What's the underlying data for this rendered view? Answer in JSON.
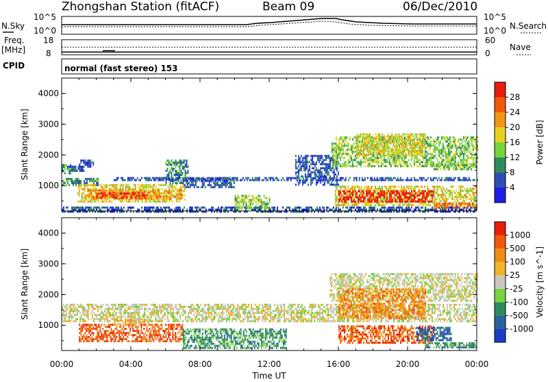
{
  "header": {
    "station_title": "Zhongshan Station (fitACF)",
    "beam_label": "Beam 09",
    "date_label": "06/Dec/2010"
  },
  "noise_panel": {
    "left_label": "N.Sky",
    "right_label": "N.Search",
    "left_top": "10^5",
    "left_bottom": "10^0",
    "right_top": "10^5",
    "right_bottom": "10^0"
  },
  "freq_panel": {
    "left_label_line1": "Freq.",
    "left_label_line2": "[MHz]",
    "right_label": "Nave",
    "left_top": "18",
    "left_bottom": "8",
    "right_top": "60",
    "right_bottom": "0"
  },
  "cpid_panel": {
    "label": "CPID",
    "mode_text": "normal (fast stereo) 153"
  },
  "x_axis": {
    "title": "Time UT",
    "tick_labels": [
      "00:00",
      "04:00",
      "08:00",
      "12:00",
      "16:00",
      "20:00",
      "00:00"
    ]
  },
  "chart_data": [
    {
      "type": "heatmap",
      "title": "Power",
      "ylabel": "Slant Range [km]",
      "xlabel": "",
      "x_unit": "hours UT",
      "xlim": [
        0,
        24
      ],
      "ylim": [
        180,
        4500
      ],
      "y_ticks": [
        1000,
        2000,
        3000,
        4000
      ],
      "y_tick_labels": [
        "1000",
        "2000",
        "3000",
        "4000"
      ],
      "colorbar": {
        "label": "Power [dB]",
        "tick_labels": [
          "28",
          "24",
          "20",
          "16",
          "12",
          "8",
          "4"
        ],
        "colors": [
          "#1e1ee6",
          "#2d50b4",
          "#2e8c5a",
          "#78d23c",
          "#e6d21e",
          "#f09614",
          "#f05a0a",
          "#e61e0a"
        ]
      },
      "regions": [
        {
          "t0": 0.0,
          "t1": 2.1,
          "r0": 1030,
          "r1": 1250,
          "level": 2
        },
        {
          "t0": 0.0,
          "t1": 0.6,
          "r0": 1400,
          "r1": 1700,
          "level": 2
        },
        {
          "t0": 0.3,
          "t1": 1.3,
          "r0": 1450,
          "r1": 1650,
          "level": 1
        },
        {
          "t0": 1.0,
          "t1": 1.8,
          "r0": 1600,
          "r1": 1850,
          "level": 1
        },
        {
          "t0": 0.9,
          "t1": 7.1,
          "r0": 500,
          "r1": 1050,
          "level": 4
        },
        {
          "t0": 1.5,
          "t1": 6.9,
          "r0": 580,
          "r1": 880,
          "level": 5
        },
        {
          "t0": 2.0,
          "t1": 5.0,
          "r0": 620,
          "r1": 780,
          "level": 7
        },
        {
          "t0": 0.0,
          "t1": 24.0,
          "r0": 180,
          "r1": 320,
          "level": 1
        },
        {
          "t0": 6.0,
          "t1": 7.3,
          "r0": 1050,
          "r1": 1850,
          "level": 2
        },
        {
          "t0": 3.0,
          "t1": 24.0,
          "r0": 1150,
          "r1": 1280,
          "level": 1
        },
        {
          "t0": 7.0,
          "t1": 10.0,
          "r0": 950,
          "r1": 1250,
          "level": 1
        },
        {
          "t0": 10.0,
          "t1": 12.0,
          "r0": 250,
          "r1": 700,
          "level": 3
        },
        {
          "t0": 13.5,
          "t1": 16.0,
          "r0": 1000,
          "r1": 2000,
          "level": 1
        },
        {
          "t0": 15.6,
          "t1": 24.0,
          "r0": 1600,
          "r1": 2600,
          "level": 3
        },
        {
          "t0": 17.0,
          "t1": 21.0,
          "r0": 2000,
          "r1": 2700,
          "level": 4
        },
        {
          "t0": 15.8,
          "t1": 24.0,
          "r0": 350,
          "r1": 1000,
          "level": 4
        },
        {
          "t0": 16.0,
          "t1": 21.5,
          "r0": 500,
          "r1": 850,
          "level": 7
        },
        {
          "t0": 21.5,
          "t1": 24.0,
          "r0": 250,
          "r1": 450,
          "level": 6
        },
        {
          "t0": 21.5,
          "t1": 24.0,
          "r0": 1500,
          "r1": 1700,
          "level": 3
        }
      ]
    },
    {
      "type": "heatmap",
      "title": "Velocity",
      "ylabel": "Slant Range [km]",
      "xlabel": "Time UT",
      "x_unit": "hours UT",
      "xlim": [
        0,
        24
      ],
      "ylim": [
        180,
        4500
      ],
      "y_ticks": [
        1000,
        2000,
        3000,
        4000
      ],
      "y_tick_labels": [
        "1000",
        "2000",
        "3000",
        "4000"
      ],
      "colorbar": {
        "label": "Velocity [m s^-1]",
        "tick_labels": [
          "1000",
          "500",
          "100",
          "25",
          "-25",
          "-100",
          "-500",
          "-1000"
        ],
        "colors": [
          "#1e3cc8",
          "#28649b",
          "#2e8c5a",
          "#78d23c",
          "#c8c8c0",
          "#f0b428",
          "#f08c14",
          "#f05a0a",
          "#e61e0a"
        ]
      },
      "regions": [
        {
          "t0": 0.0,
          "t1": 24.0,
          "r0": 1100,
          "r1": 1700,
          "level": 4
        },
        {
          "t0": 1.0,
          "t1": 7.0,
          "r0": 450,
          "r1": 1050,
          "level": 7
        },
        {
          "t0": 3.0,
          "t1": 5.0,
          "r0": 1050,
          "r1": 1200,
          "level": 5
        },
        {
          "t0": 7.0,
          "t1": 13.0,
          "r0": 250,
          "r1": 900,
          "level": 2
        },
        {
          "t0": 15.5,
          "t1": 24.0,
          "r0": 1800,
          "r1": 2700,
          "level": 4
        },
        {
          "t0": 16.0,
          "t1": 21.0,
          "r0": 1200,
          "r1": 2200,
          "level": 6
        },
        {
          "t0": 16.0,
          "t1": 21.5,
          "r0": 400,
          "r1": 1000,
          "level": 7
        },
        {
          "t0": 20.5,
          "t1": 22.5,
          "r0": 500,
          "r1": 950,
          "level": 1
        },
        {
          "t0": 21.0,
          "t1": 24.0,
          "r0": 280,
          "r1": 450,
          "level": 2
        }
      ]
    }
  ]
}
